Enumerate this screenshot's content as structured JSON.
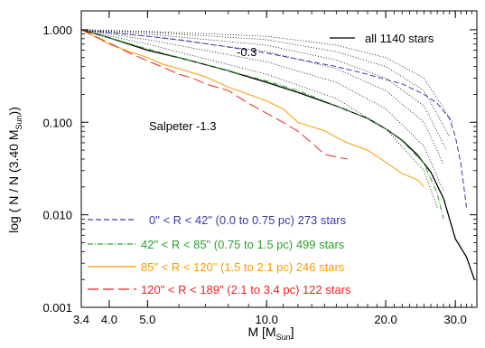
{
  "chart_data": {
    "type": "line",
    "xscale": "log",
    "yscale": "log",
    "xlim": [
      3.4,
      34
    ],
    "ylim": [
      0.001,
      1.6
    ],
    "xticks": [
      3.4,
      4.0,
      5.0,
      10.0,
      20.0,
      30.0
    ],
    "xtick_labels": [
      "3.4",
      "4.0",
      "5.0",
      "10.0",
      "20.0",
      "30.0"
    ],
    "yticks": [
      0.001,
      0.01,
      0.1,
      1.0
    ],
    "ytick_labels": [
      "0.001",
      "0.010",
      "0.100",
      "1.000"
    ],
    "xlabel": {
      "main": "M [M",
      "sub": "Sun",
      "close": "]"
    },
    "ylabel": {
      "main": "log ( N / N (3.40 M",
      "sub": "Sun",
      "close": "))"
    },
    "annotations": [
      {
        "id": "slope-0.3",
        "text": "-0.3"
      },
      {
        "id": "salpeter",
        "text": "Salpeter -1.3"
      }
    ],
    "legend_top": {
      "label": "all 1140 stars",
      "color": "#000000"
    },
    "legend_bottom": [
      {
        "id": "r0",
        "text": "0\" < R < 42\" (0.0 to 0.75 pc)  273 stars",
        "color": "#3a3aa8",
        "dash": "6,3"
      },
      {
        "id": "r1",
        "text": "42\" < R < 85\" (0.75 to 1.5 pc)  499 stars",
        "color": "#2ca02c",
        "dash": "6,2,1,2"
      },
      {
        "id": "r2",
        "text": "85\" < R < 120\" (1.5 to 2.1 pc)  246 stars",
        "color": "#ff9900",
        "dash": ""
      },
      {
        "id": "r3",
        "text": "120\" < R < 189\" (2.1 to 3.4 pc)  122 stars",
        "color": "#ee2222",
        "dash": "12,5"
      }
    ],
    "series": [
      {
        "id": "all",
        "color": "#000000",
        "dash": "",
        "width": 1.3,
        "x": [
          3.4,
          4.0,
          5.0,
          6.0,
          7.0,
          8.0,
          10.0,
          12.0,
          15.0,
          18.0,
          20.0,
          22.0,
          24.0,
          26.0,
          28.0,
          30.0,
          32.0,
          33.5
        ],
        "y": [
          1.0,
          0.82,
          0.6,
          0.5,
          0.42,
          0.36,
          0.27,
          0.21,
          0.15,
          0.11,
          0.085,
          0.064,
          0.045,
          0.029,
          0.015,
          0.0055,
          0.0035,
          0.002
        ]
      },
      {
        "id": "r0",
        "color": "#3a3aa8",
        "dash": "6,3",
        "width": 1,
        "x": [
          3.4,
          4.0,
          5.0,
          6.0,
          8.0,
          10.0,
          12.0,
          15.0,
          18.0,
          20.0,
          22.0,
          25.0,
          27.0,
          29.0,
          30.0,
          31.0,
          32.0
        ],
        "y": [
          1.0,
          0.93,
          0.85,
          0.78,
          0.65,
          0.56,
          0.48,
          0.4,
          0.33,
          0.29,
          0.26,
          0.2,
          0.16,
          0.11,
          0.07,
          0.035,
          0.012
        ]
      },
      {
        "id": "r1",
        "color": "#2ca02c",
        "dash": "6,2,1,2",
        "width": 1,
        "x": [
          3.4,
          4.0,
          5.0,
          6.0,
          8.0,
          10.0,
          12.0,
          15.0,
          18.0,
          20.0,
          22.0,
          25.0,
          27.0,
          28.0
        ],
        "y": [
          1.0,
          0.82,
          0.62,
          0.5,
          0.36,
          0.28,
          0.22,
          0.15,
          0.11,
          0.085,
          0.063,
          0.036,
          0.017,
          0.009
        ]
      },
      {
        "id": "r2",
        "color": "#ff9900",
        "dash": "",
        "width": 1,
        "x": [
          3.4,
          4.0,
          4.5,
          5.0,
          5.5,
          6.0,
          7.0,
          8.0,
          9.0,
          10.0,
          11.0,
          12.0,
          14.0,
          15.0,
          16.0,
          18.0,
          20.0,
          22.0,
          24.0,
          25.0
        ],
        "y": [
          1.0,
          0.7,
          0.58,
          0.5,
          0.42,
          0.38,
          0.31,
          0.24,
          0.2,
          0.17,
          0.14,
          0.1,
          0.081,
          0.069,
          0.06,
          0.05,
          0.037,
          0.028,
          0.024,
          0.02
        ]
      },
      {
        "id": "r3",
        "color": "#ee2222",
        "dash": "12,5",
        "width": 1,
        "x": [
          3.4,
          4.0,
          4.5,
          5.0,
          5.5,
          6.0,
          6.5,
          7.0,
          8.0,
          9.0,
          10.0,
          11.0,
          12.0,
          13.0,
          14.0,
          16.0
        ],
        "y": [
          1.0,
          0.72,
          0.56,
          0.46,
          0.39,
          0.33,
          0.3,
          0.26,
          0.22,
          0.16,
          0.125,
          0.1,
          0.08,
          0.06,
          0.045,
          0.04
        ]
      },
      {
        "id": "alpha-1",
        "color": "#000000",
        "dash": "1,2",
        "width": 0.8,
        "x": [
          3.4,
          5.0,
          10.0,
          15.0,
          20.0,
          25.0,
          28.0
        ],
        "y": [
          1.0,
          0.85,
          0.58,
          0.38,
          0.22,
          0.1,
          0.035
        ]
      },
      {
        "id": "alpha-2",
        "color": "#000000",
        "dash": "1,2",
        "width": 0.8,
        "x": [
          3.4,
          5.0,
          10.0,
          15.0,
          20.0,
          25.0,
          28.5
        ],
        "y": [
          1.0,
          0.9,
          0.68,
          0.47,
          0.3,
          0.15,
          0.05
        ]
      },
      {
        "id": "alpha-3",
        "color": "#000000",
        "dash": "1,2",
        "width": 0.8,
        "x": [
          3.4,
          5.0,
          10.0,
          15.0,
          20.0,
          25.0,
          29.0
        ],
        "y": [
          1.0,
          0.94,
          0.78,
          0.58,
          0.4,
          0.22,
          0.07
        ]
      },
      {
        "id": "alpha-4",
        "color": "#000000",
        "dash": "1,2",
        "width": 0.8,
        "x": [
          3.4,
          5.0,
          10.0,
          15.0,
          20.0,
          25.0,
          29.5
        ],
        "y": [
          1.0,
          0.96,
          0.85,
          0.68,
          0.5,
          0.3,
          0.1
        ]
      },
      {
        "id": "alpha-5",
        "color": "#000000",
        "dash": "1,2",
        "width": 0.8,
        "x": [
          3.4,
          5.0,
          10.0,
          15.0,
          20.0,
          25.0,
          28.0
        ],
        "y": [
          1.0,
          0.78,
          0.45,
          0.27,
          0.14,
          0.055,
          0.018
        ]
      },
      {
        "id": "alpha-6",
        "color": "#000000",
        "dash": "1,2",
        "width": 0.8,
        "x": [
          3.4,
          5.0,
          10.0,
          15.0,
          20.0,
          25.0,
          27.0
        ],
        "y": [
          1.0,
          0.7,
          0.33,
          0.18,
          0.085,
          0.03,
          0.012
        ]
      }
    ]
  }
}
